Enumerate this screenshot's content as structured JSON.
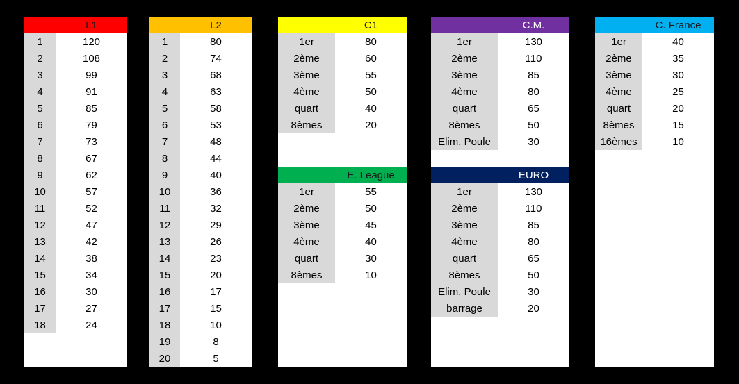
{
  "tables": [
    {
      "id": "l1",
      "title": "L1",
      "color": "#FF0000",
      "text_color": "#1a1a1a",
      "rows": [
        [
          "1",
          "120"
        ],
        [
          "2",
          "108"
        ],
        [
          "3",
          "99"
        ],
        [
          "4",
          "91"
        ],
        [
          "5",
          "85"
        ],
        [
          "6",
          "79"
        ],
        [
          "7",
          "73"
        ],
        [
          "8",
          "67"
        ],
        [
          "9",
          "62"
        ],
        [
          "10",
          "57"
        ],
        [
          "11",
          "52"
        ],
        [
          "12",
          "47"
        ],
        [
          "13",
          "42"
        ],
        [
          "14",
          "38"
        ],
        [
          "15",
          "34"
        ],
        [
          "16",
          "30"
        ],
        [
          "17",
          "27"
        ],
        [
          "18",
          "24"
        ]
      ]
    },
    {
      "id": "l2",
      "title": "L2",
      "color": "#FFC000",
      "text_color": "#1a1a1a",
      "rows": [
        [
          "1",
          "80"
        ],
        [
          "2",
          "74"
        ],
        [
          "3",
          "68"
        ],
        [
          "4",
          "63"
        ],
        [
          "5",
          "58"
        ],
        [
          "6",
          "53"
        ],
        [
          "7",
          "48"
        ],
        [
          "8",
          "44"
        ],
        [
          "9",
          "40"
        ],
        [
          "10",
          "36"
        ],
        [
          "11",
          "32"
        ],
        [
          "12",
          "29"
        ],
        [
          "13",
          "26"
        ],
        [
          "14",
          "23"
        ],
        [
          "15",
          "20"
        ],
        [
          "16",
          "17"
        ],
        [
          "17",
          "15"
        ],
        [
          "18",
          "10"
        ],
        [
          "19",
          "8"
        ],
        [
          "20",
          "5"
        ]
      ]
    },
    {
      "id": "c1",
      "title": "C1",
      "color": "#FFFF00",
      "text_color": "#1a1a1a",
      "rows": [
        [
          "1er",
          "80"
        ],
        [
          "2ème",
          "60"
        ],
        [
          "3ème",
          "55"
        ],
        [
          "4ème",
          "50"
        ],
        [
          "quart",
          "40"
        ],
        [
          "8èmes",
          "20"
        ]
      ]
    },
    {
      "id": "el",
      "title": "E. League",
      "color": "#00B050",
      "text_color": "#1a1a1a",
      "rows": [
        [
          "1er",
          "55"
        ],
        [
          "2ème",
          "50"
        ],
        [
          "3ème",
          "45"
        ],
        [
          "4ème",
          "40"
        ],
        [
          "quart",
          "30"
        ],
        [
          "8èmes",
          "10"
        ]
      ]
    },
    {
      "id": "cm",
      "title": "C.M.",
      "color": "#7030A0",
      "text_color": "#ffffff",
      "rows": [
        [
          "1er",
          "130"
        ],
        [
          "2ème",
          "110"
        ],
        [
          "3ème",
          "85"
        ],
        [
          "4ème",
          "80"
        ],
        [
          "quart",
          "65"
        ],
        [
          "8èmes",
          "50"
        ],
        [
          "Elim. Poule",
          "30"
        ]
      ]
    },
    {
      "id": "euro",
      "title": "EURO",
      "color": "#002060",
      "text_color": "#ffffff",
      "rows": [
        [
          "1er",
          "130"
        ],
        [
          "2ème",
          "110"
        ],
        [
          "3ème",
          "85"
        ],
        [
          "4ème",
          "80"
        ],
        [
          "quart",
          "65"
        ],
        [
          "8èmes",
          "50"
        ],
        [
          "Elim. Poule",
          "30"
        ],
        [
          "barrage",
          "20"
        ]
      ]
    },
    {
      "id": "cf",
      "title": "C. France",
      "color": "#00B0F0",
      "text_color": "#1a1a1a",
      "rows": [
        [
          "1er",
          "40"
        ],
        [
          "2ème",
          "35"
        ],
        [
          "3ème",
          "30"
        ],
        [
          "4ème",
          "25"
        ],
        [
          "quart",
          "20"
        ],
        [
          "8èmes",
          "15"
        ],
        [
          "16èmes",
          "10"
        ]
      ]
    }
  ]
}
